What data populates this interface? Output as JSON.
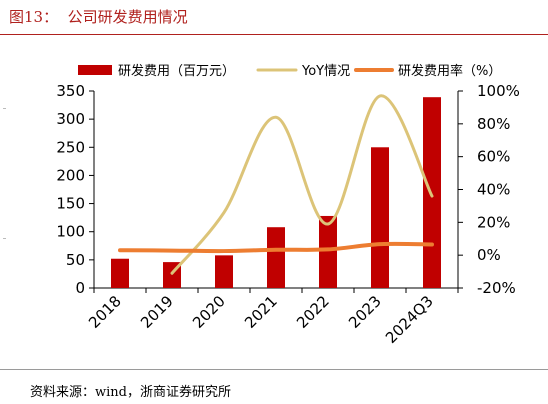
{
  "figure": {
    "title": "图13：  公司研发费用情况",
    "source": "资料来源：wind，浙商证券研究所"
  },
  "chart_data": {
    "type": "bar",
    "categories": [
      "2018",
      "2019",
      "2020",
      "2021",
      "2022",
      "2023",
      "2024Q3"
    ],
    "series": [
      {
        "name": "研发费用（百万元）",
        "type": "bar",
        "axis": "left",
        "values": [
          52,
          46,
          58,
          108,
          128,
          250,
          339
        ],
        "color": "#c00000"
      },
      {
        "name": "YoY情况",
        "type": "line",
        "smooth": true,
        "axis": "right",
        "values": [
          null,
          -11,
          26,
          84,
          19,
          97,
          36
        ],
        "color": "#dcc478"
      },
      {
        "name": "研发费用率（%）",
        "type": "line",
        "smooth": true,
        "axis": "right",
        "values": [
          3.0,
          2.8,
          2.5,
          3.3,
          3.5,
          6.7,
          6.5
        ],
        "color": "#ed7d31"
      }
    ],
    "yleft": {
      "min": 0,
      "max": 350,
      "ticks": [
        0,
        50,
        100,
        150,
        200,
        250,
        300,
        350
      ]
    },
    "yright": {
      "min": -20,
      "max": 100,
      "ticks": [
        -20,
        0,
        20,
        40,
        60,
        80,
        100
      ],
      "tick_labels": [
        "-20%",
        "0%",
        "20%",
        "40%",
        "60%",
        "80%",
        "100%"
      ]
    },
    "legend_position": "top",
    "grid": false,
    "xlabel": "",
    "ylabel": ""
  }
}
